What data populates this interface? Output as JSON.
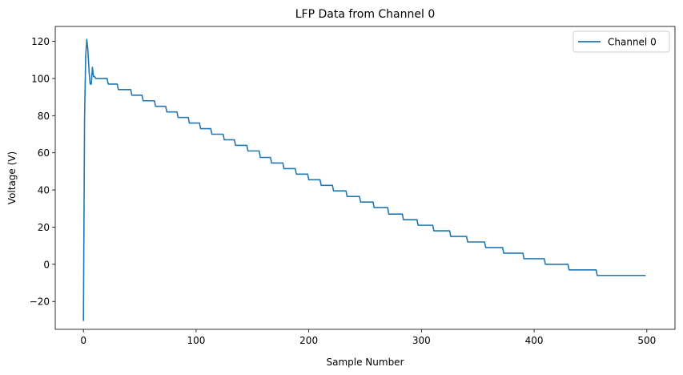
{
  "chart_data": {
    "type": "line",
    "title": "LFP Data from Channel 0",
    "xlabel": "Sample Number",
    "ylabel": "Voltage (V)",
    "xlim": [
      -25,
      525
    ],
    "ylim": [
      -35,
      128
    ],
    "xticks": [
      0,
      100,
      200,
      300,
      400,
      500
    ],
    "yticks": [
      -20,
      0,
      20,
      40,
      60,
      80,
      100,
      120
    ],
    "grid": false,
    "legend_position": "top-right",
    "series": [
      {
        "name": "Channel 0",
        "color": "#1f77b4",
        "x": [
          0,
          1,
          2,
          3,
          4,
          5,
          6,
          7,
          8,
          9,
          10,
          11,
          12,
          21,
          22,
          30,
          31,
          42,
          43,
          52,
          53,
          63,
          64,
          73,
          74,
          83,
          84,
          93,
          94,
          103,
          104,
          113,
          114,
          124,
          125,
          134,
          135,
          145,
          146,
          156,
          157,
          166,
          167,
          177,
          178,
          188,
          189,
          199,
          200,
          210,
          211,
          221,
          222,
          233,
          234,
          245,
          246,
          257,
          258,
          270,
          271,
          283,
          284,
          296,
          297,
          310,
          311,
          325,
          326,
          340,
          341,
          356,
          357,
          372,
          373,
          390,
          391,
          409,
          410,
          430,
          431,
          455,
          456,
          485,
          486,
          499
        ],
        "y": [
          -30.5,
          78,
          112,
          121,
          115,
          104,
          97,
          97,
          106,
          101,
          101,
          100,
          100,
          100,
          97,
          97,
          94,
          94,
          91,
          91,
          88,
          88,
          85,
          85,
          82,
          82,
          79,
          79,
          76,
          76,
          73,
          73,
          70,
          70,
          67,
          67,
          64,
          64,
          61,
          61,
          57.5,
          57.5,
          54.5,
          54.5,
          51.5,
          51.5,
          48.5,
          48.5,
          45.5,
          45.5,
          42.5,
          42.5,
          39.5,
          39.5,
          36.5,
          36.5,
          33.5,
          33.5,
          30.5,
          30.5,
          27,
          27,
          24,
          24,
          21,
          21,
          18,
          18,
          15,
          15,
          12,
          12,
          9,
          9,
          6,
          6,
          3,
          3,
          0,
          0,
          -3,
          -3,
          -6,
          -6,
          -6,
          -6
        ]
      }
    ]
  }
}
